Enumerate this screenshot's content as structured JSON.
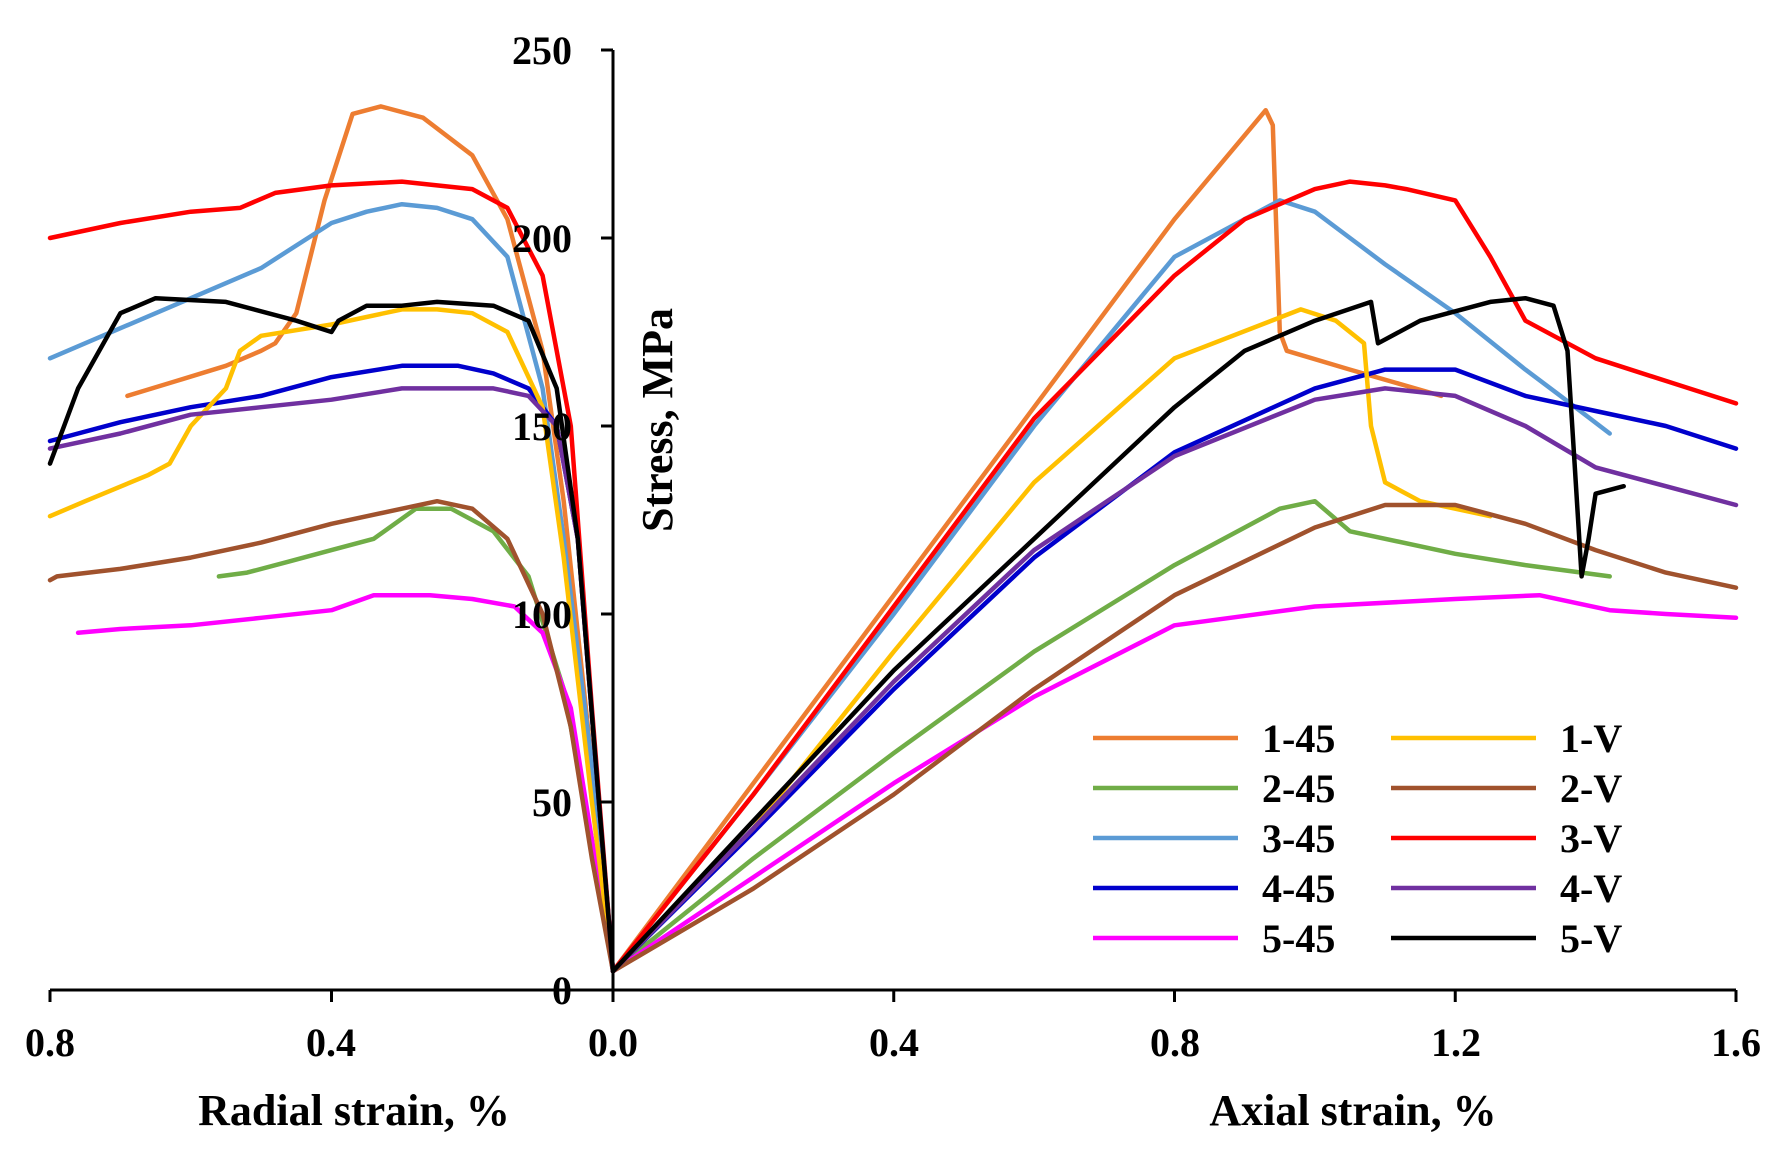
{
  "chart_data": {
    "type": "line",
    "ylabel": "Stress, MPa",
    "xlabel_left": "Radial strain, %",
    "xlabel_right": "Axial strain, %",
    "ylim": [
      0,
      250
    ],
    "xlim_radial": [
      0.8,
      0
    ],
    "xlim_axial": [
      0,
      1.6
    ],
    "y_ticks": [
      "0",
      "50",
      "100",
      "150",
      "200",
      "250"
    ],
    "radial_ticks": [
      "0.8",
      "0.4",
      "0.0"
    ],
    "axial_ticks": [
      "0.4",
      "0.8",
      "1.2",
      "1.6"
    ],
    "legend": {
      "placement": "bottom-right"
    },
    "series": [
      {
        "name": "1-45",
        "color": "#ED7D31",
        "radial": [
          [
            0,
            5
          ],
          [
            0.03,
            60
          ],
          [
            0.07,
            130
          ],
          [
            0.1,
            170
          ],
          [
            0.15,
            205
          ],
          [
            0.2,
            222
          ],
          [
            0.27,
            232
          ],
          [
            0.33,
            235
          ],
          [
            0.37,
            233
          ],
          [
            0.41,
            210
          ],
          [
            0.45,
            180
          ],
          [
            0.48,
            172
          ],
          [
            0.5,
            170
          ],
          [
            0.55,
            166
          ],
          [
            0.62,
            162
          ],
          [
            0.69,
            158
          ]
        ],
        "axial": [
          [
            0,
            5
          ],
          [
            0.2,
            55
          ],
          [
            0.4,
            105
          ],
          [
            0.6,
            155
          ],
          [
            0.8,
            205
          ],
          [
            0.93,
            234
          ],
          [
            0.94,
            230
          ],
          [
            0.95,
            175
          ],
          [
            0.96,
            170
          ],
          [
            1.05,
            165
          ],
          [
            1.18,
            158
          ]
        ]
      },
      {
        "name": "2-45",
        "color": "#70AD47",
        "radial": [
          [
            0,
            5
          ],
          [
            0.03,
            40
          ],
          [
            0.07,
            80
          ],
          [
            0.12,
            110
          ],
          [
            0.17,
            122
          ],
          [
            0.23,
            128
          ],
          [
            0.28,
            128
          ],
          [
            0.34,
            120
          ],
          [
            0.4,
            117
          ],
          [
            0.46,
            114
          ],
          [
            0.52,
            111
          ],
          [
            0.56,
            110
          ]
        ],
        "axial": [
          [
            0,
            5
          ],
          [
            0.2,
            35
          ],
          [
            0.4,
            63
          ],
          [
            0.6,
            90
          ],
          [
            0.8,
            113
          ],
          [
            0.95,
            128
          ],
          [
            1.0,
            130
          ],
          [
            1.05,
            122
          ],
          [
            1.2,
            116
          ],
          [
            1.3,
            113
          ],
          [
            1.42,
            110
          ]
        ]
      },
      {
        "name": "3-45",
        "color": "#5B9BD5",
        "radial": [
          [
            0,
            5
          ],
          [
            0.03,
            60
          ],
          [
            0.07,
            120
          ],
          [
            0.1,
            160
          ],
          [
            0.15,
            195
          ],
          [
            0.2,
            205
          ],
          [
            0.25,
            208
          ],
          [
            0.3,
            209
          ],
          [
            0.35,
            207
          ],
          [
            0.4,
            204
          ],
          [
            0.45,
            198
          ],
          [
            0.5,
            192
          ],
          [
            0.6,
            184
          ],
          [
            0.7,
            176
          ],
          [
            0.8,
            168
          ]
        ],
        "axial": [
          [
            0,
            5
          ],
          [
            0.2,
            52
          ],
          [
            0.4,
            100
          ],
          [
            0.6,
            150
          ],
          [
            0.8,
            195
          ],
          [
            0.95,
            210
          ],
          [
            1.0,
            207
          ],
          [
            1.05,
            200
          ],
          [
            1.1,
            193
          ],
          [
            1.2,
            180
          ],
          [
            1.3,
            165
          ],
          [
            1.35,
            158
          ],
          [
            1.42,
            148
          ]
        ]
      },
      {
        "name": "4-45",
        "color": "#0000CC",
        "radial": [
          [
            0,
            5
          ],
          [
            0.02,
            50
          ],
          [
            0.05,
            120
          ],
          [
            0.08,
            150
          ],
          [
            0.12,
            160
          ],
          [
            0.17,
            164
          ],
          [
            0.22,
            166
          ],
          [
            0.3,
            166
          ],
          [
            0.4,
            163
          ],
          [
            0.5,
            158
          ],
          [
            0.6,
            155
          ],
          [
            0.7,
            151
          ],
          [
            0.8,
            146
          ]
        ],
        "axial": [
          [
            0,
            5
          ],
          [
            0.2,
            42
          ],
          [
            0.4,
            80
          ],
          [
            0.6,
            115
          ],
          [
            0.8,
            143
          ],
          [
            1.0,
            160
          ],
          [
            1.1,
            165
          ],
          [
            1.2,
            165
          ],
          [
            1.3,
            158
          ],
          [
            1.4,
            154
          ],
          [
            1.5,
            150
          ],
          [
            1.6,
            144
          ]
        ]
      },
      {
        "name": "5-45",
        "color": "#FF00FF",
        "radial": [
          [
            0,
            5
          ],
          [
            0.03,
            40
          ],
          [
            0.06,
            75
          ],
          [
            0.1,
            95
          ],
          [
            0.14,
            102
          ],
          [
            0.2,
            104
          ],
          [
            0.26,
            105
          ],
          [
            0.34,
            105
          ],
          [
            0.4,
            101
          ],
          [
            0.5,
            99
          ],
          [
            0.6,
            97
          ],
          [
            0.7,
            96
          ],
          [
            0.76,
            95
          ]
        ],
        "axial": [
          [
            0,
            5
          ],
          [
            0.2,
            30
          ],
          [
            0.4,
            55
          ],
          [
            0.6,
            78
          ],
          [
            0.8,
            97
          ],
          [
            1.0,
            102
          ],
          [
            1.2,
            104
          ],
          [
            1.32,
            105
          ],
          [
            1.42,
            101
          ],
          [
            1.5,
            100
          ],
          [
            1.6,
            99
          ]
        ]
      },
      {
        "name": "1-V",
        "color": "#FFC000",
        "radial": [
          [
            0,
            5
          ],
          [
            0.03,
            50
          ],
          [
            0.07,
            115
          ],
          [
            0.1,
            155
          ],
          [
            0.15,
            175
          ],
          [
            0.2,
            180
          ],
          [
            0.25,
            181
          ],
          [
            0.3,
            181
          ],
          [
            0.4,
            177
          ],
          [
            0.5,
            174
          ],
          [
            0.53,
            170
          ],
          [
            0.55,
            160
          ],
          [
            0.6,
            150
          ],
          [
            0.63,
            140
          ],
          [
            0.66,
            137
          ],
          [
            0.75,
            130
          ],
          [
            0.8,
            126
          ]
        ],
        "axial": [
          [
            0,
            5
          ],
          [
            0.2,
            43
          ],
          [
            0.4,
            90
          ],
          [
            0.6,
            135
          ],
          [
            0.8,
            168
          ],
          [
            0.98,
            181
          ],
          [
            1.03,
            178
          ],
          [
            1.07,
            172
          ],
          [
            1.08,
            150
          ],
          [
            1.1,
            135
          ],
          [
            1.15,
            130
          ],
          [
            1.25,
            126
          ]
        ]
      },
      {
        "name": "2-V",
        "color": "#A0522D",
        "radial": [
          [
            0,
            5
          ],
          [
            0.03,
            35
          ],
          [
            0.06,
            70
          ],
          [
            0.1,
            100
          ],
          [
            0.15,
            120
          ],
          [
            0.2,
            128
          ],
          [
            0.25,
            130
          ],
          [
            0.3,
            128
          ],
          [
            0.4,
            124
          ],
          [
            0.5,
            119
          ],
          [
            0.6,
            115
          ],
          [
            0.7,
            112
          ],
          [
            0.79,
            110
          ],
          [
            0.8,
            109
          ]
        ],
        "axial": [
          [
            0,
            5
          ],
          [
            0.2,
            27
          ],
          [
            0.4,
            52
          ],
          [
            0.6,
            80
          ],
          [
            0.8,
            105
          ],
          [
            1.0,
            123
          ],
          [
            1.1,
            129
          ],
          [
            1.2,
            129
          ],
          [
            1.3,
            124
          ],
          [
            1.4,
            117
          ],
          [
            1.5,
            111
          ],
          [
            1.6,
            107
          ]
        ]
      },
      {
        "name": "3-V",
        "color": "#FF0000",
        "radial": [
          [
            0,
            5
          ],
          [
            0.03,
            75
          ],
          [
            0.06,
            150
          ],
          [
            0.1,
            190
          ],
          [
            0.15,
            208
          ],
          [
            0.2,
            213
          ],
          [
            0.3,
            215
          ],
          [
            0.4,
            214
          ],
          [
            0.48,
            212
          ],
          [
            0.53,
            208
          ],
          [
            0.6,
            207
          ],
          [
            0.7,
            204
          ],
          [
            0.8,
            200
          ]
        ],
        "axial": [
          [
            0,
            5
          ],
          [
            0.2,
            52
          ],
          [
            0.4,
            102
          ],
          [
            0.6,
            152
          ],
          [
            0.8,
            190
          ],
          [
            0.9,
            205
          ],
          [
            1.0,
            213
          ],
          [
            1.05,
            215
          ],
          [
            1.1,
            214
          ],
          [
            1.13,
            213
          ],
          [
            1.2,
            210
          ],
          [
            1.25,
            195
          ],
          [
            1.3,
            178
          ],
          [
            1.4,
            168
          ],
          [
            1.5,
            162
          ],
          [
            1.6,
            156
          ]
        ]
      },
      {
        "name": "4-V",
        "color": "#7030A0",
        "radial": [
          [
            0,
            5
          ],
          [
            0.02,
            50
          ],
          [
            0.05,
            120
          ],
          [
            0.08,
            150
          ],
          [
            0.12,
            158
          ],
          [
            0.17,
            160
          ],
          [
            0.22,
            160
          ],
          [
            0.3,
            160
          ],
          [
            0.4,
            157
          ],
          [
            0.5,
            155
          ],
          [
            0.6,
            153
          ],
          [
            0.7,
            148
          ],
          [
            0.8,
            144
          ]
        ],
        "axial": [
          [
            0,
            5
          ],
          [
            0.2,
            43
          ],
          [
            0.4,
            82
          ],
          [
            0.6,
            117
          ],
          [
            0.8,
            142
          ],
          [
            1.0,
            157
          ],
          [
            1.1,
            160
          ],
          [
            1.2,
            158
          ],
          [
            1.3,
            150
          ],
          [
            1.4,
            139
          ],
          [
            1.5,
            134
          ],
          [
            1.6,
            129
          ]
        ]
      },
      {
        "name": "5-V",
        "color": "#000000",
        "radial": [
          [
            0,
            5
          ],
          [
            0.02,
            50
          ],
          [
            0.05,
            120
          ],
          [
            0.08,
            160
          ],
          [
            0.12,
            178
          ],
          [
            0.17,
            182
          ],
          [
            0.25,
            183
          ],
          [
            0.3,
            182
          ],
          [
            0.35,
            182
          ],
          [
            0.39,
            178
          ],
          [
            0.4,
            175
          ],
          [
            0.45,
            178
          ],
          [
            0.55,
            183
          ],
          [
            0.65,
            184
          ],
          [
            0.7,
            180
          ],
          [
            0.76,
            160
          ],
          [
            0.78,
            150
          ],
          [
            0.8,
            140
          ]
        ],
        "axial": [
          [
            0,
            5
          ],
          [
            0.2,
            45
          ],
          [
            0.4,
            85
          ],
          [
            0.6,
            120
          ],
          [
            0.8,
            155
          ],
          [
            0.9,
            170
          ],
          [
            1.0,
            178
          ],
          [
            1.08,
            183
          ],
          [
            1.09,
            172
          ],
          [
            1.15,
            178
          ],
          [
            1.25,
            183
          ],
          [
            1.3,
            184
          ],
          [
            1.34,
            182
          ],
          [
            1.36,
            170
          ],
          [
            1.37,
            140
          ],
          [
            1.38,
            110
          ],
          [
            1.39,
            120
          ],
          [
            1.4,
            132
          ],
          [
            1.44,
            134
          ]
        ]
      }
    ]
  }
}
